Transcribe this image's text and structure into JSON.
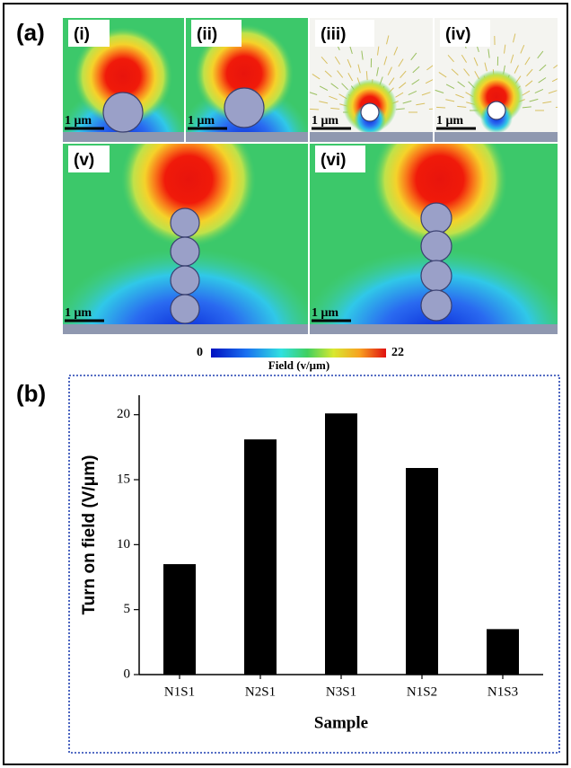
{
  "figure": {
    "panel_a_label": "(a)",
    "panel_b_label": "(b)",
    "images": [
      {
        "label": "(i)",
        "scale": "1 μm"
      },
      {
        "label": "(ii)",
        "scale": "1 μm"
      },
      {
        "label": "(iii)",
        "scale": "1 μm"
      },
      {
        "label": "(iv)",
        "scale": "1 μm"
      },
      {
        "label": "(v)",
        "scale": "1 μm"
      },
      {
        "label": "(vi)",
        "scale": "1 μm"
      }
    ],
    "colorbar": {
      "min": 0,
      "max": 22,
      "label": "Field (v/μm)"
    }
  },
  "chart_data": {
    "type": "bar",
    "categories": [
      "N1S1",
      "N2S1",
      "N3S1",
      "N1S2",
      "N1S3"
    ],
    "values": [
      8.5,
      18.1,
      20.1,
      15.9,
      3.5
    ],
    "color": "#000000",
    "ylim": [
      0,
      21.5
    ],
    "yticks": [
      0,
      5,
      10,
      15,
      20
    ],
    "xlabel": "Sample",
    "ylabel": "Turn on field (V/μm)"
  }
}
